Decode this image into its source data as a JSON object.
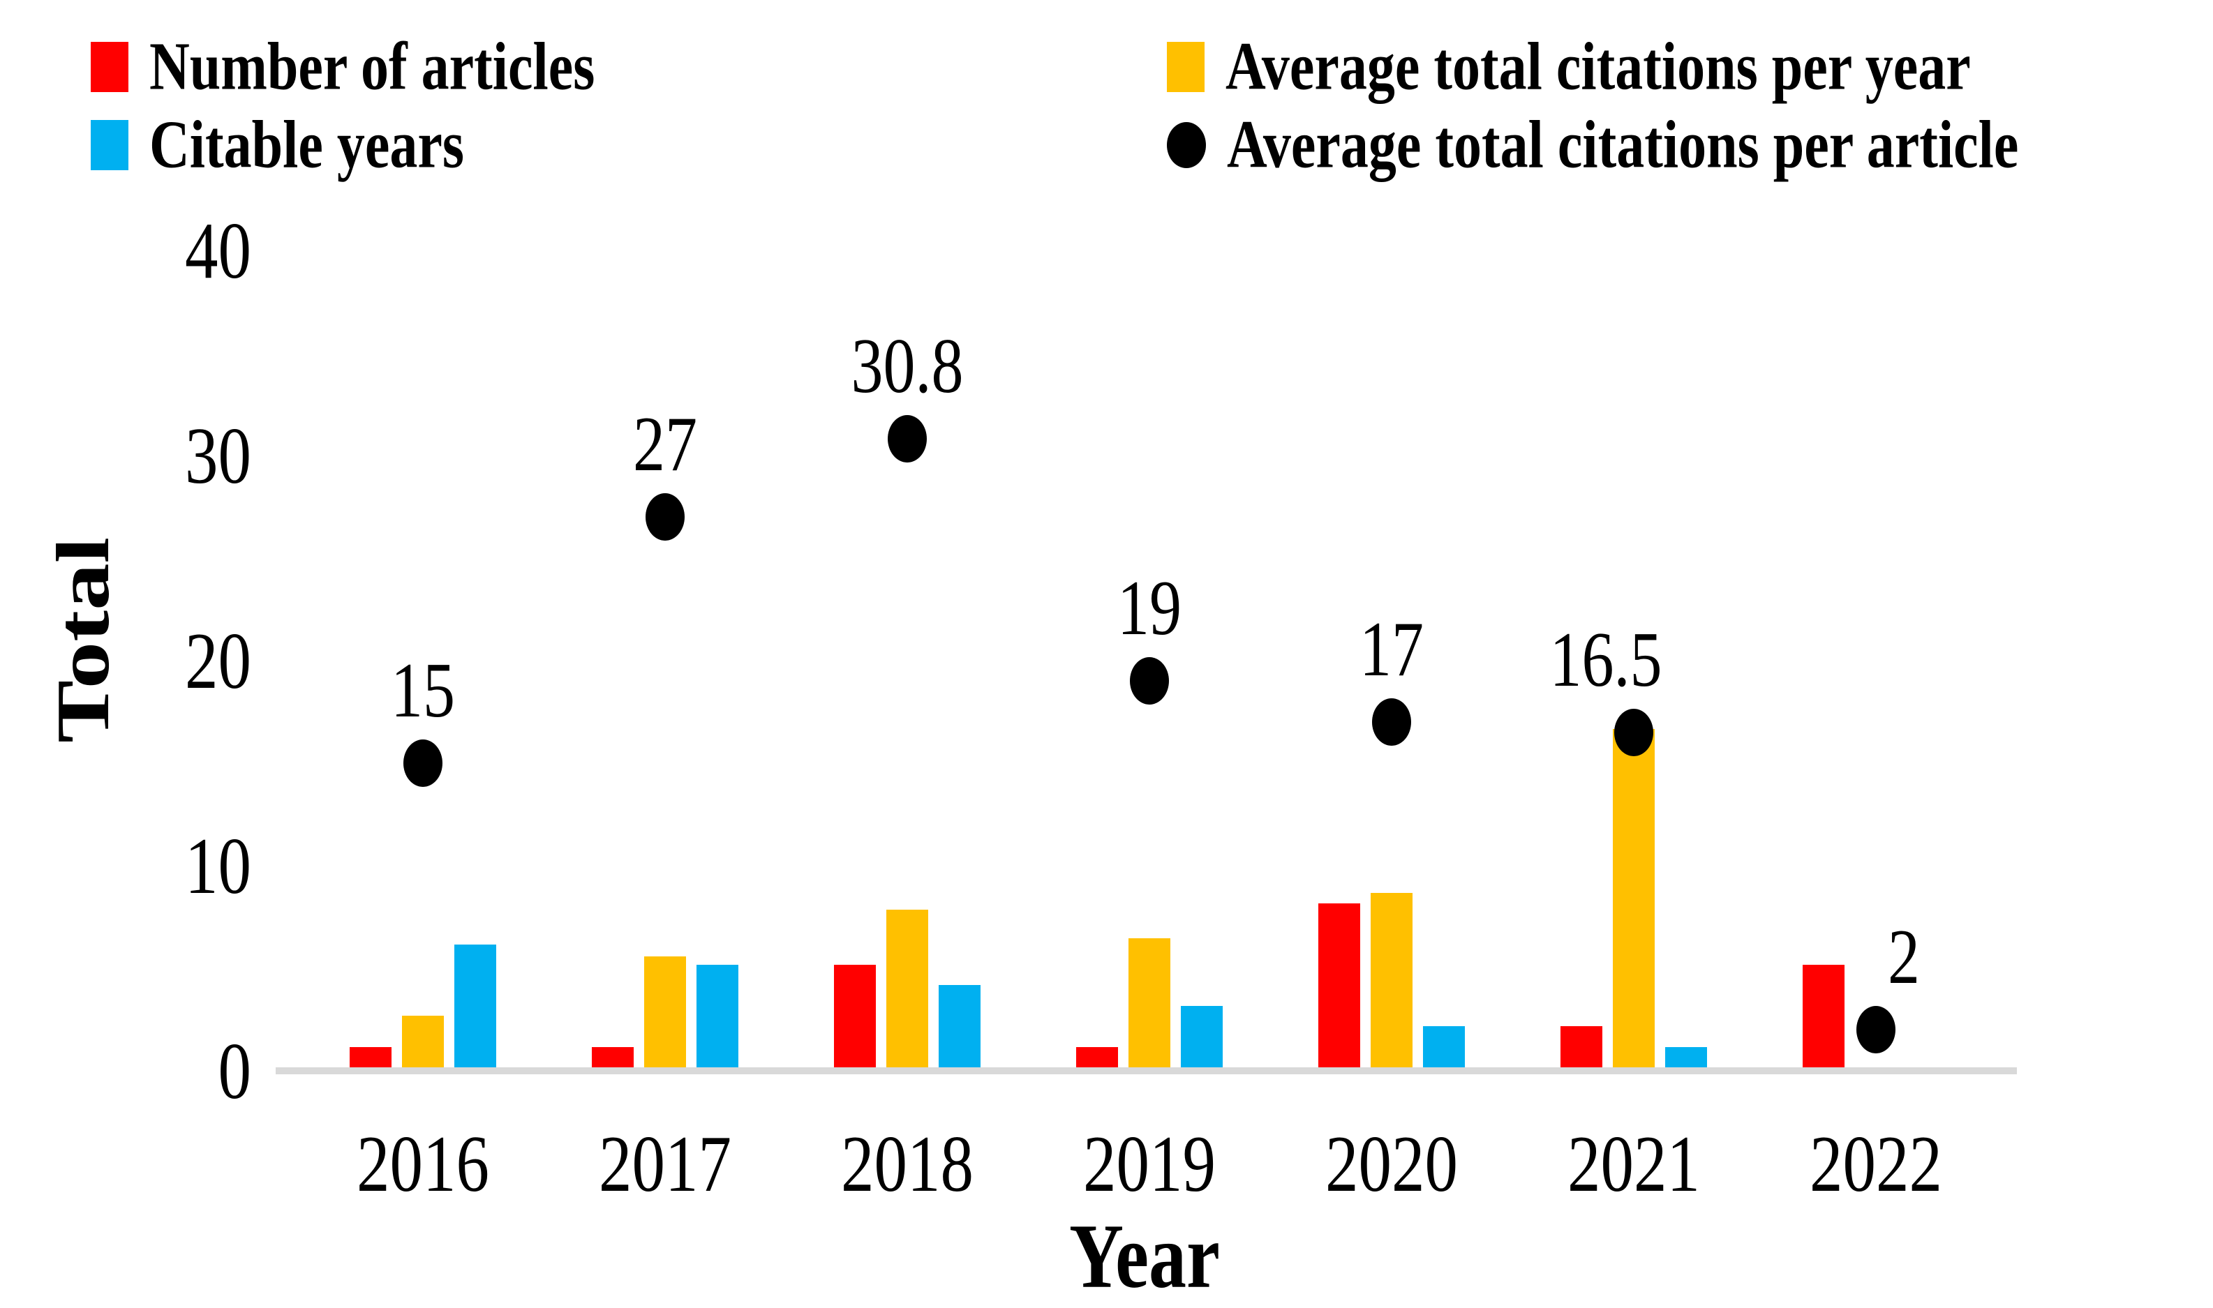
{
  "legend": {
    "items": [
      {
        "label": "Number of articles",
        "color": "#FF0000",
        "marker": "square"
      },
      {
        "label": "Citable years",
        "color": "#00B0F0",
        "marker": "square"
      },
      {
        "label": "Average total citations per year",
        "color": "#FFC000",
        "marker": "square"
      },
      {
        "label": "Average total citations per article",
        "color": "#000000",
        "marker": "circle"
      }
    ]
  },
  "chart_data": {
    "type": "bar",
    "title": "",
    "categories": [
      "2016",
      "2017",
      "2018",
      "2019",
      "2020",
      "2021",
      "2022"
    ],
    "series": [
      {
        "name": "Number of articles",
        "type": "bar",
        "color": "#FF0000",
        "values": [
          1,
          1,
          5,
          1,
          8,
          2,
          5
        ]
      },
      {
        "name": "Average total citations per year",
        "type": "bar",
        "color": "#FFC000",
        "values": [
          2.5,
          5.4,
          7.7,
          6.3,
          8.5,
          16.5,
          0
        ]
      },
      {
        "name": "Citable years",
        "type": "bar",
        "color": "#00B0F0",
        "values": [
          6,
          5,
          4,
          3,
          2,
          1,
          0
        ]
      },
      {
        "name": "Average total citations per article",
        "type": "scatter",
        "color": "#000000",
        "values": [
          15,
          27,
          30.8,
          19,
          17,
          16.5,
          2
        ],
        "labels": [
          "15",
          "27",
          "30.8",
          "19",
          "17",
          "16.5",
          "2"
        ],
        "label_offsets_x": [
          0,
          0,
          0,
          0,
          0,
          -40,
          40
        ]
      }
    ],
    "xlabel": "Year",
    "ylabel": "Total",
    "yticks": [
      0,
      10,
      20,
      30,
      40
    ],
    "ylim": [
      0,
      40
    ],
    "grid": false,
    "legend_position": "top",
    "axis_line_color": "#D9D9D9"
  }
}
